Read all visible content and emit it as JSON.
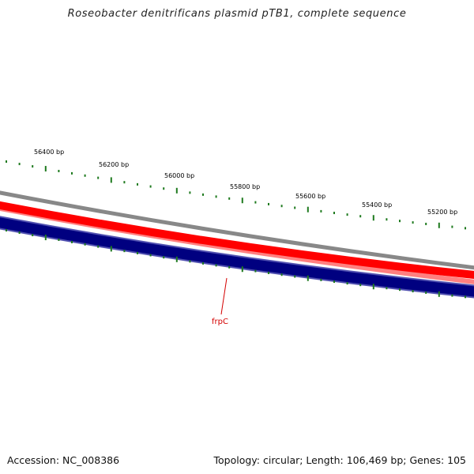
{
  "title": "Roseobacter denitrificans plasmid pTB1, complete sequence",
  "footer": {
    "accession": "Accession: NC_008386",
    "summary": "Topology: circular; Length: 106,469 bp; Genes: 105"
  },
  "ruler": {
    "labels": [
      "56400 bp",
      "56200 bp",
      "56000 bp",
      "55800 bp",
      "55600 bp",
      "55400 bp",
      "55200 bp"
    ],
    "tick_color": "#1e7a1e"
  },
  "features": {
    "gene_label": "frpC",
    "gene_label_color": "#d40000",
    "colors": {
      "outer_ring": "#888888",
      "forward_strand": "#ff0000",
      "forward_light": "#ff8080",
      "reverse_strand": "#000080",
      "reverse_border": "#5050b0"
    }
  }
}
